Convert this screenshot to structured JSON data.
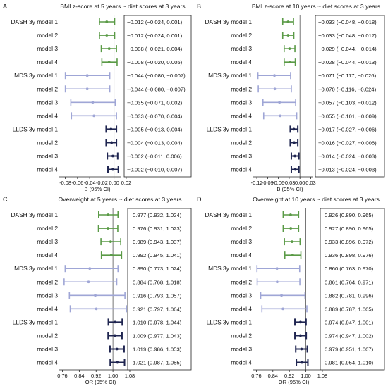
{
  "palette": {
    "dash": "#5a9a46",
    "mds": "#9fa6d6",
    "llds": "#1f2550",
    "axis": "#222222",
    "ref": "#555555"
  },
  "chart_data": [
    {
      "type": "forest",
      "panel": "A.",
      "title": "BMI z-score at 5 years ~ diet scores at 3 years",
      "xlabel": "B (95% CI)",
      "xlim": [
        -0.09,
        0.012
      ],
      "ref": 0,
      "ticks": [
        -0.08,
        -0.06,
        -0.04,
        -0.02,
        0.0,
        0.02
      ],
      "tick_labels": [
        "-0.08",
        "-0.06",
        "-0.04",
        "-0.02",
        "0.00",
        "0.02"
      ],
      "rows": [
        {
          "label": "DASH 3y model 1",
          "group": "dash",
          "est": -0.012,
          "lo": -0.024,
          "hi": 0.001,
          "text": "−0.012 (−0.024, 0.001)"
        },
        {
          "label": "model 2",
          "group": "dash",
          "est": -0.012,
          "lo": -0.024,
          "hi": 0.001,
          "text": "−0.012 (−0.024, 0.001)"
        },
        {
          "label": "model 3",
          "group": "dash",
          "est": -0.008,
          "lo": -0.021,
          "hi": 0.004,
          "text": "−0.008 (−0.021, 0.004)"
        },
        {
          "label": "model 4",
          "group": "dash",
          "est": -0.008,
          "lo": -0.02,
          "hi": 0.005,
          "text": "−0.008 (−0.020, 0.005)"
        },
        {
          "label": "MDS 3y model 1",
          "group": "mds",
          "est": -0.044,
          "lo": -0.08,
          "hi": -0.007,
          "text": "−0.044 (−0.080, −0.007)"
        },
        {
          "label": "model 2",
          "group": "mds",
          "est": -0.044,
          "lo": -0.08,
          "hi": -0.007,
          "text": "−0.044 (−0.080, −0.007)"
        },
        {
          "label": "model 3",
          "group": "mds",
          "est": -0.035,
          "lo": -0.071,
          "hi": 0.002,
          "text": "−0.035 (−0.071, 0.002)"
        },
        {
          "label": "model 4",
          "group": "mds",
          "est": -0.033,
          "lo": -0.07,
          "hi": 0.004,
          "text": "−0.033 (−0.070, 0.004)"
        },
        {
          "label": "LLDS 3y model 1",
          "group": "llds",
          "est": -0.005,
          "lo": -0.013,
          "hi": 0.004,
          "text": "−0.005 (−0.013, 0.004)"
        },
        {
          "label": "model 2",
          "group": "llds",
          "est": -0.004,
          "lo": -0.013,
          "hi": 0.004,
          "text": "−0.004 (−0.013, 0.004)"
        },
        {
          "label": "model 3",
          "group": "llds",
          "est": -0.002,
          "lo": -0.011,
          "hi": 0.006,
          "text": "−0.002 (−0.011, 0.006)"
        },
        {
          "label": "model 4",
          "group": "llds",
          "est": -0.002,
          "lo": -0.01,
          "hi": 0.007,
          "text": "−0.002 (−0.010, 0.007)"
        }
      ]
    },
    {
      "type": "forest",
      "panel": "B.",
      "title": "BMI z-score at 10 years ~ diet scores at 3 years",
      "xlabel": "B (95% CI)",
      "xlim": [
        -0.13,
        0.035
      ],
      "ref": 0,
      "ticks": [
        -0.12,
        -0.09,
        -0.06,
        -0.03,
        0.0,
        0.03
      ],
      "tick_labels": [
        "-0.12",
        "-0.09",
        "-0.06",
        "-0.03",
        "0.00",
        "0.03"
      ],
      "rows": [
        {
          "label": "DASH 3y model 1",
          "group": "dash",
          "est": -0.033,
          "lo": -0.048,
          "hi": -0.018,
          "text": "−0.033 (−0.048, −0.018)"
        },
        {
          "label": "model 2",
          "group": "dash",
          "est": -0.033,
          "lo": -0.048,
          "hi": -0.017,
          "text": "−0.033 (−0.048, −0.017)"
        },
        {
          "label": "model 3",
          "group": "dash",
          "est": -0.029,
          "lo": -0.044,
          "hi": -0.014,
          "text": "−0.029 (−0.044, −0.014)"
        },
        {
          "label": "model 4",
          "group": "dash",
          "est": -0.028,
          "lo": -0.044,
          "hi": -0.013,
          "text": "−0.028 (−0.044, −0.013)"
        },
        {
          "label": "MDS 3y model 1",
          "group": "mds",
          "est": -0.071,
          "lo": -0.117,
          "hi": -0.026,
          "text": "−0.071 (−0.117, −0.026)"
        },
        {
          "label": "model 2",
          "group": "mds",
          "est": -0.07,
          "lo": -0.116,
          "hi": -0.024,
          "text": "−0.070 (−0.116, −0.024)"
        },
        {
          "label": "model 3",
          "group": "mds",
          "est": -0.057,
          "lo": -0.103,
          "hi": -0.012,
          "text": "−0.057 (−0.103, −0.012)"
        },
        {
          "label": "model 4",
          "group": "mds",
          "est": -0.055,
          "lo": -0.101,
          "hi": -0.009,
          "text": "−0.055 (−0.101, −0.009)"
        },
        {
          "label": "LLDS 3y model 1",
          "group": "llds",
          "est": -0.017,
          "lo": -0.027,
          "hi": -0.006,
          "text": "−0.017 (−0.027, −0.006)"
        },
        {
          "label": "model 2",
          "group": "llds",
          "est": -0.016,
          "lo": -0.027,
          "hi": -0.006,
          "text": "−0.016 (−0.027, −0.006)"
        },
        {
          "label": "model 3",
          "group": "llds",
          "est": -0.014,
          "lo": -0.024,
          "hi": -0.003,
          "text": "−0.014 (−0.024, −0.003)"
        },
        {
          "label": "model 4",
          "group": "llds",
          "est": -0.013,
          "lo": -0.024,
          "hi": -0.003,
          "text": "−0.013 (−0.024, −0.003)"
        }
      ]
    },
    {
      "type": "forest",
      "panel": "C.",
      "title": "Overweight at 5 years ~ diet scores at 3 years",
      "xlabel": "OR (95% CI)",
      "xlim": [
        0.745,
        1.07
      ],
      "ref": 1,
      "ticks": [
        0.76,
        0.84,
        0.92,
        1.0,
        1.08
      ],
      "tick_labels": [
        "0.76",
        "0.84",
        "0.92",
        "1.00",
        "1.08"
      ],
      "rows": [
        {
          "label": "DASH 3y model 1",
          "group": "dash",
          "est": 0.977,
          "lo": 0.932,
          "hi": 1.024,
          "text": "0.977 (0.932, 1.024)"
        },
        {
          "label": "model 2",
          "group": "dash",
          "est": 0.976,
          "lo": 0.931,
          "hi": 1.023,
          "text": "0.976 (0.931, 1.023)"
        },
        {
          "label": "model 3",
          "group": "dash",
          "est": 0.989,
          "lo": 0.943,
          "hi": 1.037,
          "text": "0.989 (0.943, 1.037)"
        },
        {
          "label": "model 4",
          "group": "dash",
          "est": 0.992,
          "lo": 0.945,
          "hi": 1.041,
          "text": "0.992 (0.945, 1.041)"
        },
        {
          "label": "MDS 3y model 1",
          "group": "mds",
          "est": 0.89,
          "lo": 0.773,
          "hi": 1.024,
          "text": "0.890 (0.773, 1.024)"
        },
        {
          "label": "model 2",
          "group": "mds",
          "est": 0.884,
          "lo": 0.768,
          "hi": 1.018,
          "text": "0.884 (0.768, 1.018)"
        },
        {
          "label": "model 3",
          "group": "mds",
          "est": 0.916,
          "lo": 0.793,
          "hi": 1.057,
          "text": "0.916 (0.793, 1.057)"
        },
        {
          "label": "model 4",
          "group": "mds",
          "est": 0.921,
          "lo": 0.797,
          "hi": 1.064,
          "text": "0.921 (0.797, 1.064)"
        },
        {
          "label": "LLDS 3y model 1",
          "group": "llds",
          "est": 1.01,
          "lo": 0.978,
          "hi": 1.044,
          "text": "1.010 (0.978, 1.044)"
        },
        {
          "label": "model 2",
          "group": "llds",
          "est": 1.009,
          "lo": 0.977,
          "hi": 1.043,
          "text": "1.009 (0.977, 1.043)"
        },
        {
          "label": "model 3",
          "group": "llds",
          "est": 1.019,
          "lo": 0.986,
          "hi": 1.053,
          "text": "1.019 (0.986, 1.053)"
        },
        {
          "label": "model 4",
          "group": "llds",
          "est": 1.021,
          "lo": 0.987,
          "hi": 1.055,
          "text": "1.021 (0.987, 1.055)"
        }
      ]
    },
    {
      "type": "forest",
      "panel": "D.",
      "title": "Overweight at 10 years ~ diet scores at 3 years",
      "xlabel": "OR (95% CI)",
      "xlim": [
        0.745,
        1.07
      ],
      "ref": 1,
      "ticks": [
        0.76,
        0.84,
        0.92,
        1.0,
        1.08
      ],
      "tick_labels": [
        "0.76",
        "0.84",
        "0.92",
        "1.00",
        "1.08"
      ],
      "rows": [
        {
          "label": "DASH 3y model 1",
          "group": "dash",
          "est": 0.926,
          "lo": 0.89,
          "hi": 0.965,
          "text": "0.926 (0.890, 0.965)"
        },
        {
          "label": "model 2",
          "group": "dash",
          "est": 0.927,
          "lo": 0.89,
          "hi": 0.965,
          "text": "0.927 (0.890, 0.965)"
        },
        {
          "label": "model 3",
          "group": "dash",
          "est": 0.933,
          "lo": 0.896,
          "hi": 0.972,
          "text": "0.933 (0.896, 0.972)"
        },
        {
          "label": "model 4",
          "group": "dash",
          "est": 0.936,
          "lo": 0.898,
          "hi": 0.976,
          "text": "0.936 (0.898, 0.976)"
        },
        {
          "label": "MDS 3y model 1",
          "group": "mds",
          "est": 0.86,
          "lo": 0.763,
          "hi": 0.97,
          "text": "0.860 (0.763, 0.970)"
        },
        {
          "label": "model 2",
          "group": "mds",
          "est": 0.861,
          "lo": 0.764,
          "hi": 0.971,
          "text": "0.861 (0.764, 0.971)"
        },
        {
          "label": "model 3",
          "group": "mds",
          "est": 0.882,
          "lo": 0.781,
          "hi": 0.996,
          "text": "0.882 (0.781, 0.996)"
        },
        {
          "label": "model 4",
          "group": "mds",
          "est": 0.889,
          "lo": 0.787,
          "hi": 1.005,
          "text": "0.889 (0.787, 1.005)"
        },
        {
          "label": "LLDS 3y model 1",
          "group": "llds",
          "est": 0.974,
          "lo": 0.947,
          "hi": 1.001,
          "text": "0.974 (0.947, 1.001)"
        },
        {
          "label": "model 2",
          "group": "llds",
          "est": 0.974,
          "lo": 0.947,
          "hi": 1.002,
          "text": "0.974 (0.947, 1.002)"
        },
        {
          "label": "model 3",
          "group": "llds",
          "est": 0.979,
          "lo": 0.951,
          "hi": 1.007,
          "text": "0.979 (0.951, 1.007)"
        },
        {
          "label": "model 4",
          "group": "llds",
          "est": 0.981,
          "lo": 0.954,
          "hi": 1.01,
          "text": "0.981 (0.954, 1.010)"
        }
      ]
    }
  ]
}
